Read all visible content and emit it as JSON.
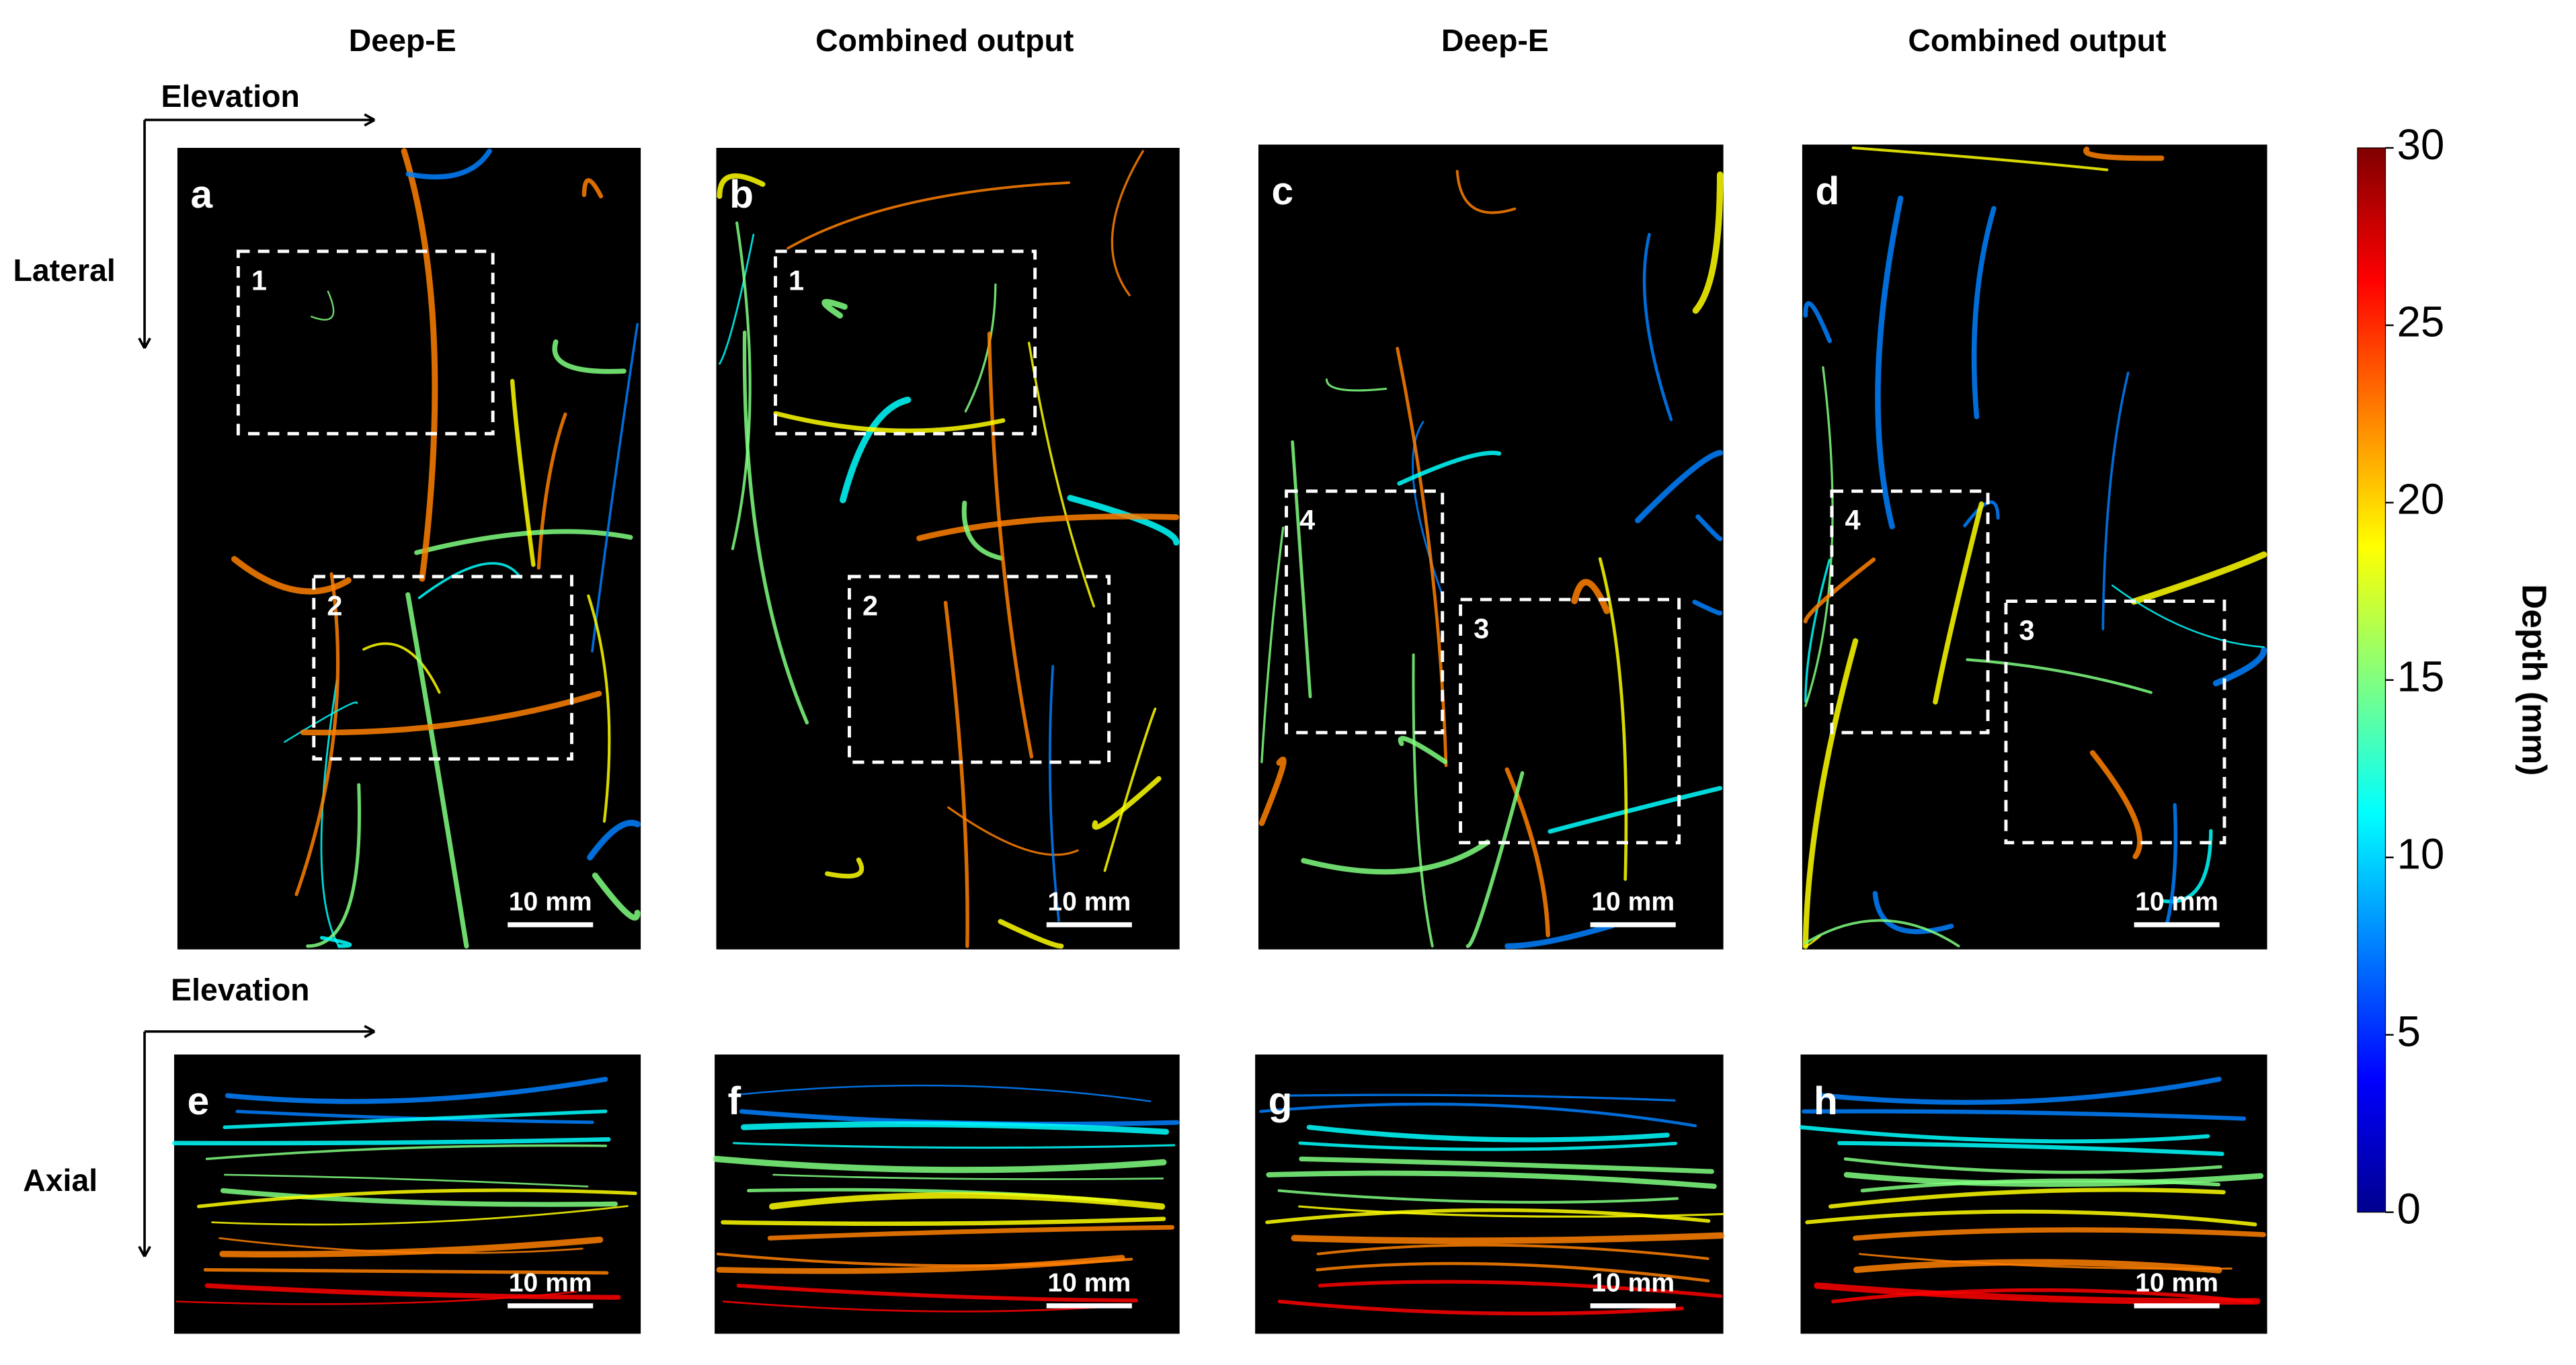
{
  "columns": [
    "Deep-E",
    "Combined output",
    "Deep-E",
    "Combined output"
  ],
  "axes": {
    "top": {
      "horizontal": "Elevation",
      "vertical": "Lateral"
    },
    "bottom": {
      "horizontal": "Elevation",
      "vertical": "Axial"
    }
  },
  "panels": [
    {
      "letter": "a",
      "scale_bar": "10 mm",
      "boxes": [
        "1",
        "2"
      ]
    },
    {
      "letter": "b",
      "scale_bar": "10 mm",
      "boxes": [
        "1",
        "2"
      ]
    },
    {
      "letter": "c",
      "scale_bar": "10 mm",
      "boxes": [
        "4",
        "3"
      ]
    },
    {
      "letter": "d",
      "scale_bar": "10 mm",
      "boxes": [
        "4",
        "3"
      ]
    },
    {
      "letter": "e",
      "scale_bar": "10 mm"
    },
    {
      "letter": "f",
      "scale_bar": "10 mm"
    },
    {
      "letter": "g",
      "scale_bar": "10 mm"
    },
    {
      "letter": "h",
      "scale_bar": "10 mm"
    }
  ],
  "colorbar": {
    "label": "Depth (mm)",
    "lim": [
      0,
      30
    ],
    "ticks": [
      0,
      5,
      10,
      15,
      20,
      25,
      30
    ],
    "colormap": [
      "#00008f",
      "#0000ff",
      "#0080ff",
      "#00ffff",
      "#80ff80",
      "#ffff00",
      "#ff8000",
      "#ff0000",
      "#800000"
    ]
  }
}
